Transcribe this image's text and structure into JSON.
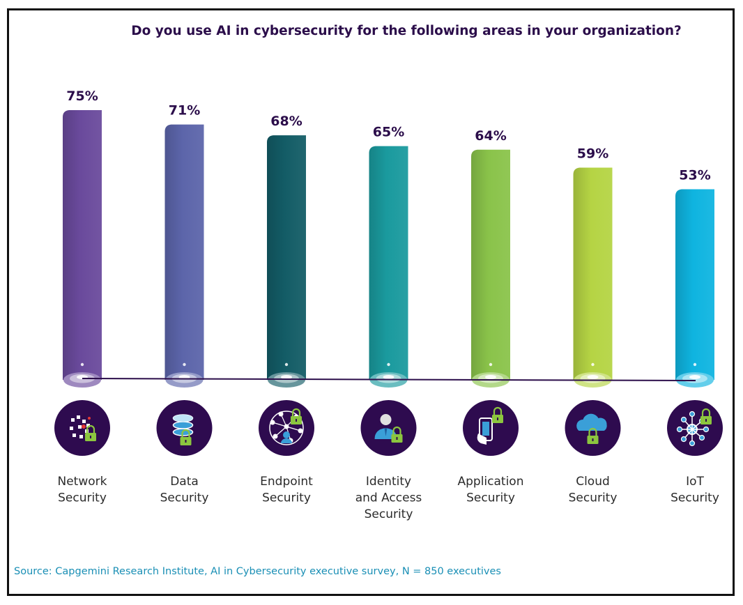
{
  "title": "Do you use AI in cybersecurity for the following areas in your organization?",
  "source": "Source: Capgemini Research Institute, AI in Cybersecurity executive survey, N = 850 executives",
  "colors": [
    "#6a4a9c",
    "#5c65aa",
    "#135c66",
    "#1a9a9e",
    "#8ac34a",
    "#b5d444",
    "#0fb4e0"
  ],
  "icons": [
    "network-lock-icon",
    "database-lock-icon",
    "endpoint-network-icon",
    "user-lock-icon",
    "mobile-app-lock-icon",
    "cloud-lock-icon",
    "iot-hub-lock-icon"
  ],
  "chart_data": {
    "type": "bar",
    "title": "Do you use AI in cybersecurity for the following areas in your organization?",
    "categories": [
      "Network Security",
      "Data Security",
      "Endpoint Security",
      "Identity and Access Security",
      "Application Security",
      "Cloud Security",
      "IoT Security"
    ],
    "category_lines": [
      [
        "Network",
        "Security"
      ],
      [
        "Data",
        "Security"
      ],
      [
        "Endpoint",
        "Security"
      ],
      [
        "Identity",
        "and Access",
        "Security"
      ],
      [
        "Application",
        "Security"
      ],
      [
        "Cloud",
        "Security"
      ],
      [
        "IoT",
        "Security"
      ]
    ],
    "values": [
      75,
      71,
      68,
      65,
      64,
      59,
      53
    ],
    "labels": [
      "75%",
      "71%",
      "68%",
      "65%",
      "64%",
      "59%",
      "53%"
    ],
    "unit": "%",
    "ylim": [
      0,
      100
    ],
    "grid": false,
    "legend": "none"
  }
}
